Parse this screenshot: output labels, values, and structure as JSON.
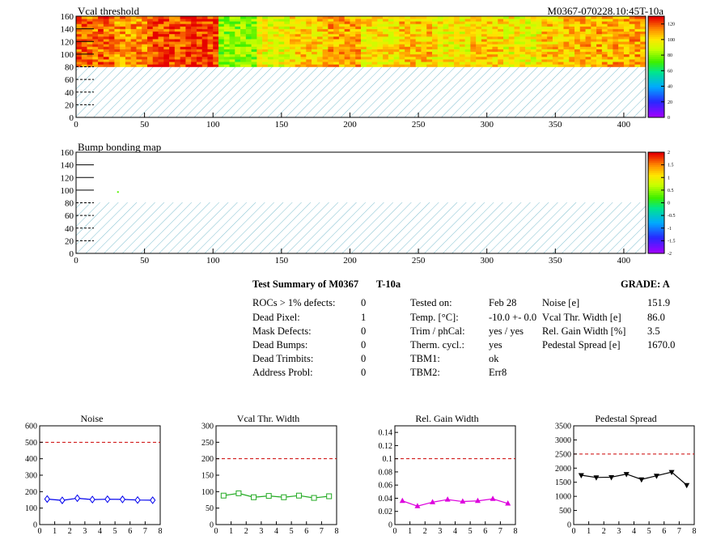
{
  "page": {
    "module_id": "M0367-070228.10:45T-10a"
  },
  "colors": {
    "hatch": "#7fbfcf",
    "ref_line": "#cc0000",
    "noise": "#0000ee",
    "vcal": "#22aa22",
    "gain": "#dd00dd",
    "pedestal": "#000000"
  },
  "summary": {
    "title": "Test Summary of M0367",
    "temp_code": "T-10a",
    "grade": "GRADE:  A",
    "defects": [
      {
        "label": "ROCs > 1% defects:",
        "value": "0"
      },
      {
        "label": "Dead Pixel:",
        "value": "1"
      },
      {
        "label": "Mask Defects:",
        "value": "0"
      },
      {
        "label": "Dead Bumps:",
        "value": "0"
      },
      {
        "label": "Dead Trimbits:",
        "value": "0"
      },
      {
        "label": "Address Probl:",
        "value": "0"
      }
    ],
    "conditions": [
      {
        "label": "Tested on:",
        "value": "Feb 28"
      },
      {
        "label": "Temp. [°C]:",
        "value": "-10.0 +- 0.0"
      },
      {
        "label": "Trim / phCal:",
        "value": "yes / yes"
      },
      {
        "label": "Therm. cycl.:",
        "value": "yes"
      },
      {
        "label": "TBM1:",
        "value": "ok"
      },
      {
        "label": "TBM2:",
        "value": "Err8"
      }
    ],
    "results": [
      {
        "label": "Noise [e]",
        "value": "151.9"
      },
      {
        "label": "Vcal Thr. Width [e]",
        "value": "86.0"
      },
      {
        "label": "Rel. Gain Width [%]",
        "value": "3.5"
      },
      {
        "label": "Pedestal Spread [e]",
        "value": "1670.0"
      }
    ]
  },
  "chart_data": [
    {
      "type": "heatmap",
      "title": "Vcal threshold",
      "x_ticks": [
        "0",
        "50",
        "100",
        "150",
        "200",
        "250",
        "300",
        "350",
        "400"
      ],
      "y_ticks": [
        "0",
        "20",
        "40",
        "60",
        "80",
        "100",
        "120",
        "140",
        "160"
      ],
      "xlim": [
        0,
        416
      ],
      "ylim": [
        0,
        160
      ],
      "filled_rows": [
        80,
        160
      ],
      "roc_mean_values": [
        118,
        112,
        122,
        125,
        80,
        96,
        104,
        110,
        100,
        106,
        98,
        104,
        97,
        105,
        108,
        110
      ],
      "colorbar_ticks": [
        "0",
        "20",
        "40",
        "60",
        "80",
        "100",
        "120"
      ],
      "zlim": [
        0,
        130
      ]
    },
    {
      "type": "heatmap",
      "title": "Bump bonding map",
      "x_ticks": [
        "0",
        "50",
        "100",
        "150",
        "200",
        "250",
        "300",
        "350",
        "400"
      ],
      "y_ticks": [
        "0",
        "20",
        "40",
        "60",
        "80",
        "100",
        "120",
        "140",
        "160"
      ],
      "xlim": [
        0,
        416
      ],
      "ylim": [
        0,
        160
      ],
      "filled_rows": [
        80,
        160
      ],
      "points": [
        {
          "x": 30,
          "y": 97,
          "z": 0.3
        }
      ],
      "colorbar_ticks": [
        "-2",
        "-1.5",
        "-1",
        "-0.5",
        "0",
        "0.5",
        "1",
        "1.5",
        "2"
      ],
      "zlim": [
        -2,
        2
      ]
    },
    {
      "type": "line",
      "title": "Noise",
      "x": [
        0.5,
        1.5,
        2.5,
        3.5,
        4.5,
        5.5,
        6.5,
        7.5
      ],
      "values": [
        155,
        147,
        160,
        152,
        154,
        153,
        149,
        148
      ],
      "xlim": [
        0,
        8
      ],
      "ylim": [
        0,
        600
      ],
      "x_ticks": [
        "0",
        "1",
        "2",
        "3",
        "4",
        "5",
        "6",
        "7",
        "8"
      ],
      "y_ticks": [
        "0",
        "100",
        "200",
        "300",
        "400",
        "500",
        "600"
      ],
      "ref": 500
    },
    {
      "type": "line",
      "title": "Vcal Thr. Width",
      "x": [
        0.5,
        1.5,
        2.5,
        3.5,
        4.5,
        5.5,
        6.5,
        7.5
      ],
      "values": [
        88,
        95,
        83,
        87,
        83,
        88,
        81,
        86
      ],
      "xlim": [
        0,
        8
      ],
      "ylim": [
        0,
        300
      ],
      "x_ticks": [
        "0",
        "1",
        "2",
        "3",
        "4",
        "5",
        "6",
        "7",
        "8"
      ],
      "y_ticks": [
        "0",
        "50",
        "100",
        "150",
        "200",
        "250",
        "300"
      ],
      "ref": 200
    },
    {
      "type": "line",
      "title": "Rel. Gain Width",
      "x": [
        0.5,
        1.5,
        2.5,
        3.5,
        4.5,
        5.5,
        6.5,
        7.5
      ],
      "values": [
        0.036,
        0.028,
        0.034,
        0.038,
        0.035,
        0.036,
        0.039,
        0.032
      ],
      "xlim": [
        0,
        8
      ],
      "ylim": [
        0,
        0.15
      ],
      "x_ticks": [
        "0",
        "1",
        "2",
        "3",
        "4",
        "5",
        "6",
        "7",
        "8"
      ],
      "y_ticks": [
        "0",
        "0.02",
        "0.04",
        "0.06",
        "0.08",
        "0.1",
        "0.12",
        "0.14"
      ],
      "ref": 0.1
    },
    {
      "type": "line",
      "title": "Pedestal Spread",
      "x": [
        0.5,
        1.5,
        2.5,
        3.5,
        4.5,
        5.5,
        6.5,
        7.5
      ],
      "values": [
        1750,
        1670,
        1680,
        1790,
        1600,
        1730,
        1860,
        1400
      ],
      "xlim": [
        0,
        8
      ],
      "ylim": [
        0,
        3500
      ],
      "x_ticks": [
        "0",
        "1",
        "2",
        "3",
        "4",
        "5",
        "6",
        "7",
        "8"
      ],
      "y_ticks": [
        "0",
        "500",
        "1000",
        "1500",
        "2000",
        "2500",
        "3000",
        "3500"
      ],
      "ref": 2500
    }
  ]
}
